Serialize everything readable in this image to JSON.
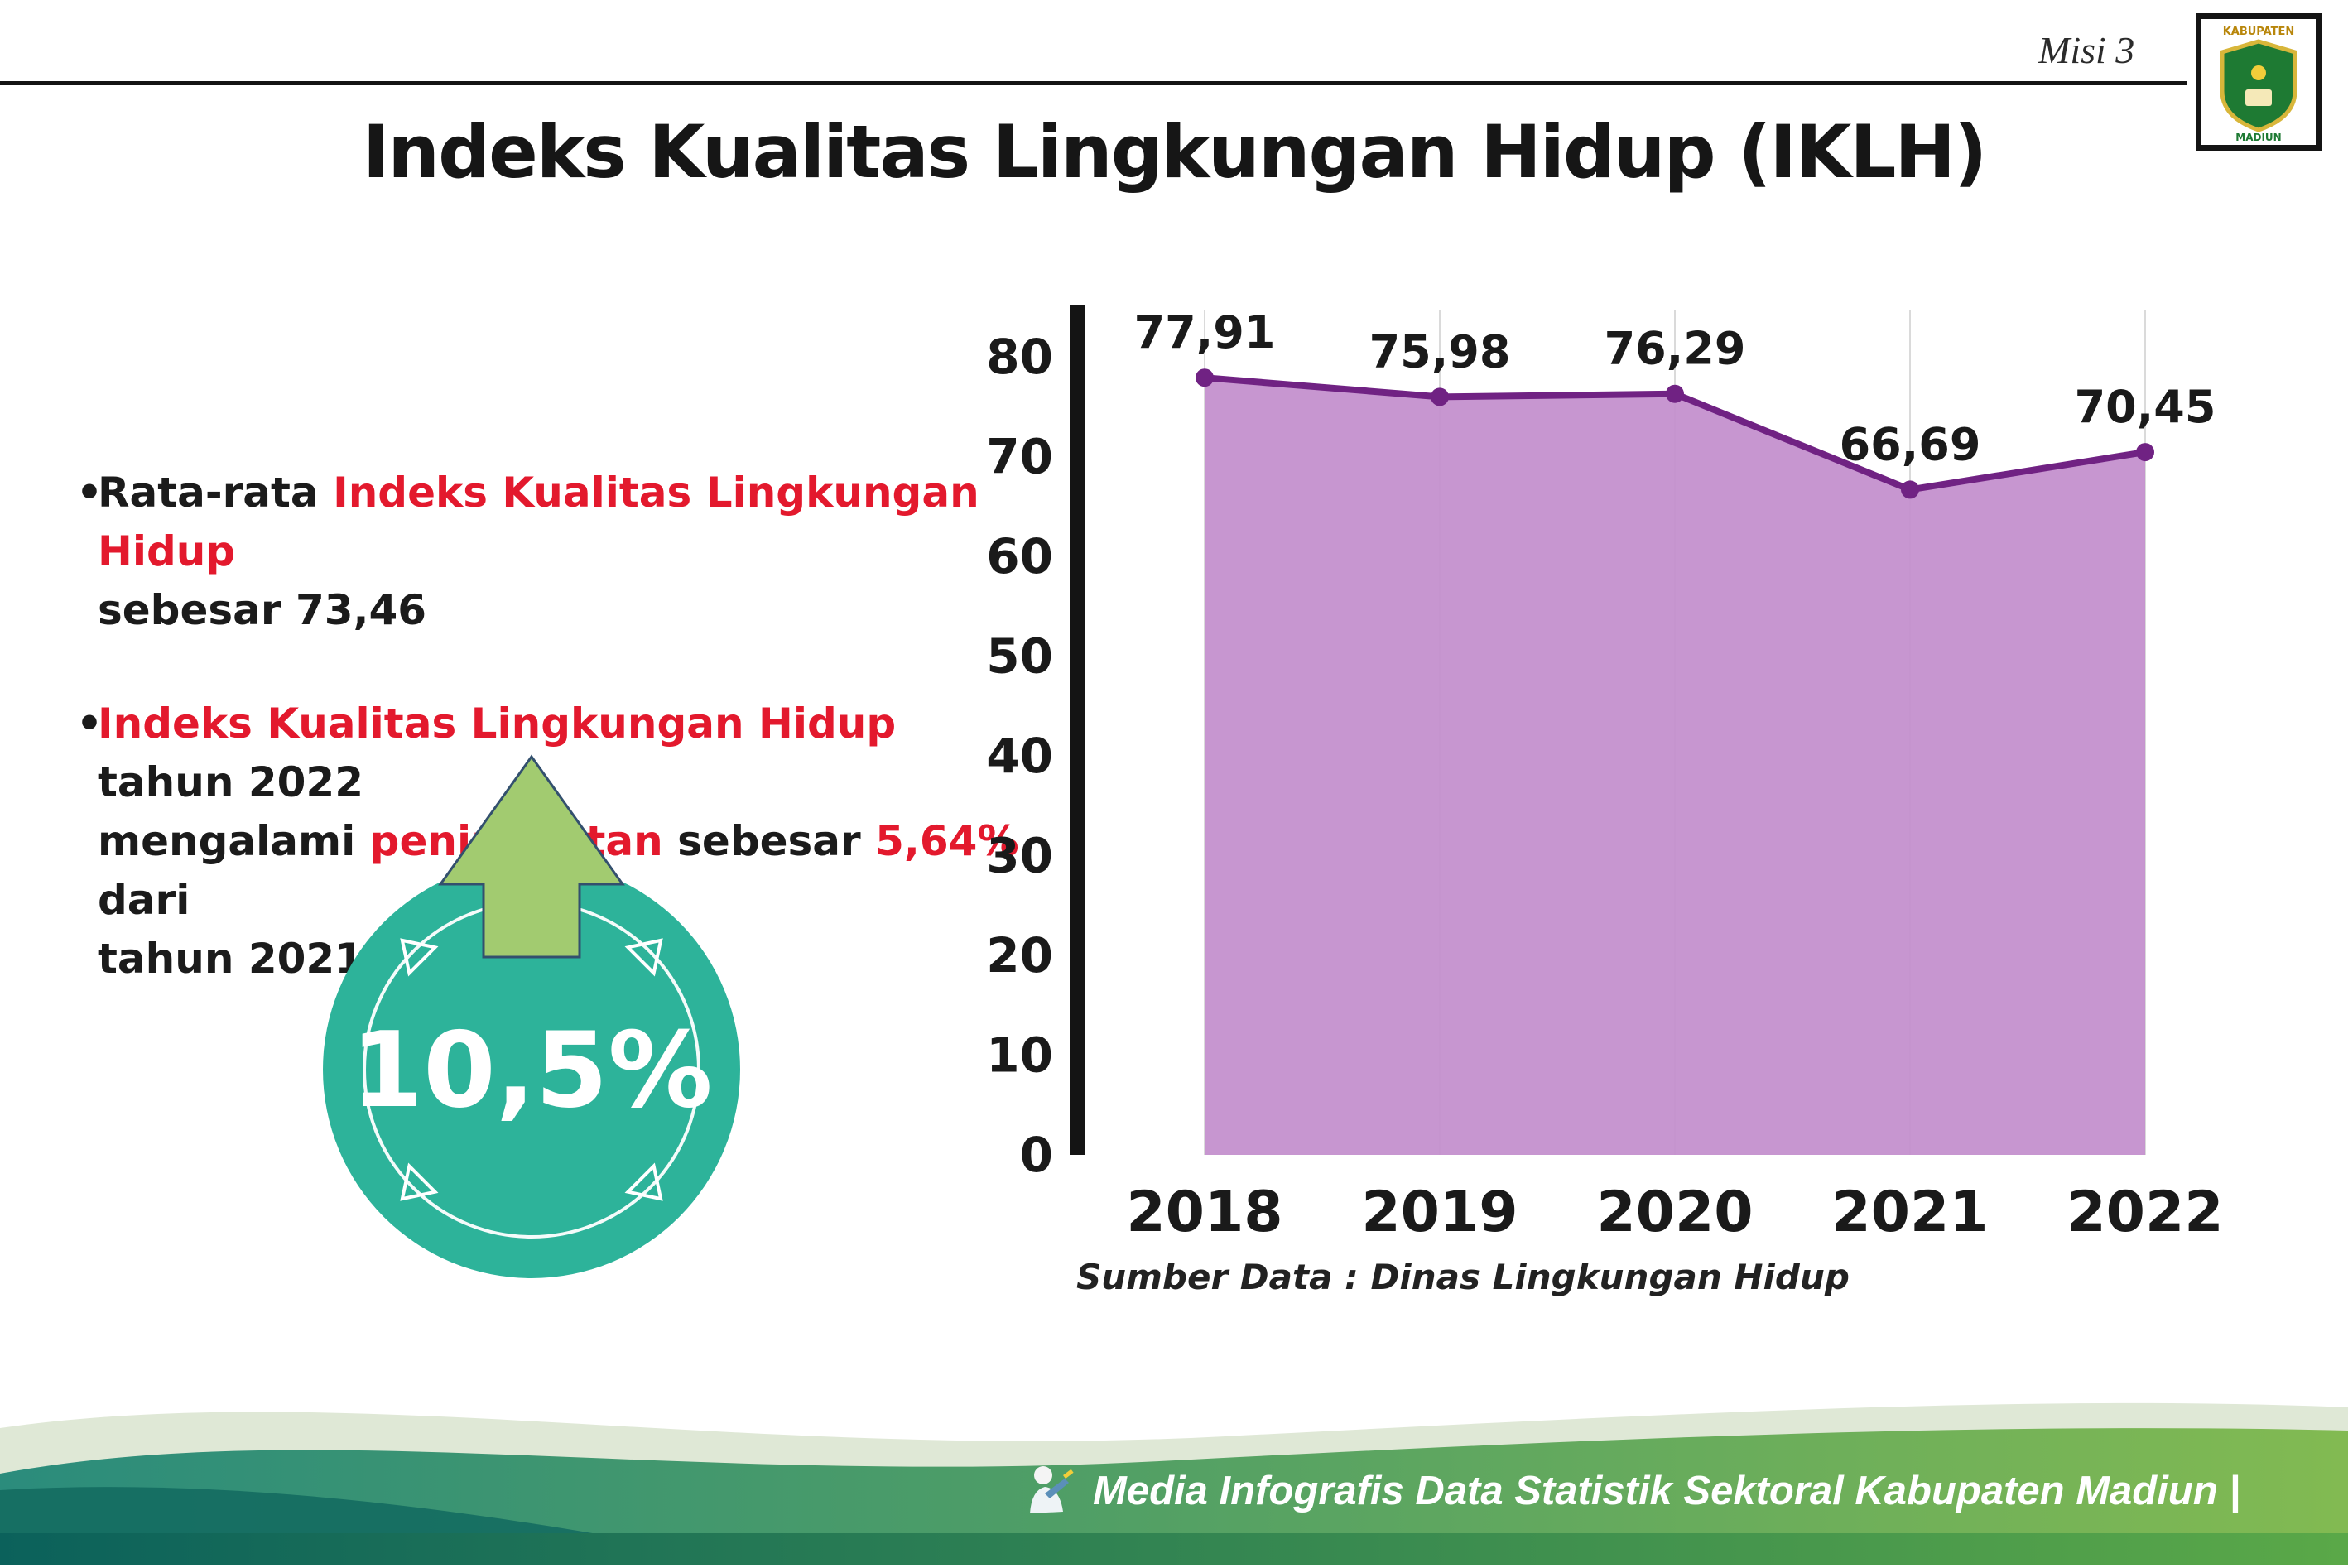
{
  "header": {
    "misi_label": "Misi 3",
    "title": "Indeks Kualitas Lingkungan Hidup (IKLH)",
    "logo_top_text": "KABUPATEN",
    "logo_bottom_text": "MADIUN"
  },
  "bullets": {
    "marker": "•",
    "b1": {
      "l1_a": "Rata-rata ",
      "l1_b": "Indeks Kualitas Lingkungan Hidup",
      "l2": "sebesar 73,46"
    },
    "b2": {
      "l1_a": "Indeks Kualitas Lingkungan Hidup",
      "l1_b": " tahun 2022",
      "l2_a": "mengalami ",
      "l2_b": "peningkatan",
      "l2_c": " sebesar ",
      "l2_d": "5,64%",
      "l2_e": " dari",
      "l3": "tahun 2021"
    }
  },
  "badge": {
    "value": "10,5%"
  },
  "chart_data": {
    "type": "area",
    "categories": [
      "2018",
      "2019",
      "2020",
      "2021",
      "2022"
    ],
    "values": [
      77.91,
      75.98,
      76.29,
      66.69,
      70.45
    ],
    "value_labels": [
      "77,91",
      "75,98",
      "76,29",
      "66,69",
      "70,45"
    ],
    "title": "",
    "xlabel": "",
    "ylabel": "",
    "ylim": [
      0,
      80
    ],
    "yticks": [
      0,
      10,
      20,
      30,
      40,
      50,
      60,
      70,
      80
    ],
    "grid": "vertical",
    "legend": "none",
    "source": "Sumber Data : Dinas Lingkungan Hidup",
    "colors": {
      "area_fill": "#c490cd",
      "line": "#702283",
      "point": "#702283",
      "axis": "#141414",
      "grid": "#dadada",
      "label": "#1a1a1a"
    }
  },
  "footer": {
    "credit": "Media Infografis Data Statistik Sektoral Kabupaten Madiun |"
  },
  "colors": {
    "accent_red": "#e3192d",
    "badge_teal": "#2db39a",
    "arrow_green": "#a2cb70",
    "footer_teal": "#2b8c7c",
    "footer_green": "#82ba52"
  }
}
